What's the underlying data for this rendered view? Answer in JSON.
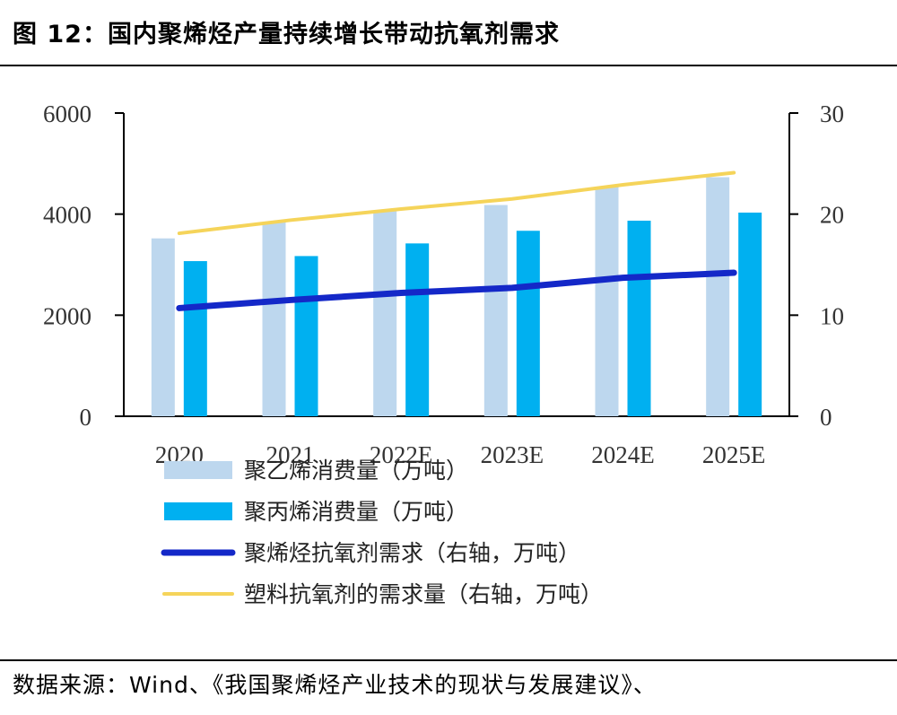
{
  "figure_title": "图 12：国内聚烯烃产量持续增长带动抗氧剂需求",
  "source_text": "数据来源：Wind、《我国聚烯烃产业技术的现状与发展建议》、",
  "chart_data": {
    "type": "bar",
    "categories": [
      "2020",
      "2021",
      "2022E",
      "2023E",
      "2024E",
      "2025E"
    ],
    "series": [
      {
        "name": "聚乙烯消费量（万吨）",
        "type": "bar",
        "axis": "left",
        "color": "#bdd7ee",
        "values": [
          3520,
          3840,
          4060,
          4180,
          4540,
          4730
        ]
      },
      {
        "name": "聚丙烯消费量（万吨）",
        "type": "bar",
        "axis": "left",
        "color": "#00b0f0",
        "values": [
          3070,
          3170,
          3420,
          3670,
          3870,
          4030
        ]
      },
      {
        "name": "聚烯烃抗氧剂需求（右轴，万吨）",
        "type": "line",
        "axis": "right",
        "color": "#1428c8",
        "values": [
          10.7,
          11.5,
          12.2,
          12.7,
          13.7,
          14.2
        ]
      },
      {
        "name": "塑料抗氧剂的需求量（右轴，万吨）",
        "type": "line",
        "axis": "right",
        "color": "#f5d45a",
        "values": [
          18.1,
          19.4,
          20.5,
          21.5,
          22.9,
          24.1
        ]
      }
    ],
    "y_left": {
      "ylim": [
        0,
        6000
      ],
      "ticks": [
        "0",
        "2000",
        "4000",
        "6000"
      ]
    },
    "y_right": {
      "ylim": [
        0,
        30
      ],
      "ticks": [
        "0",
        "10",
        "20",
        "30"
      ]
    },
    "grid": false,
    "legend_position": "bottom"
  }
}
